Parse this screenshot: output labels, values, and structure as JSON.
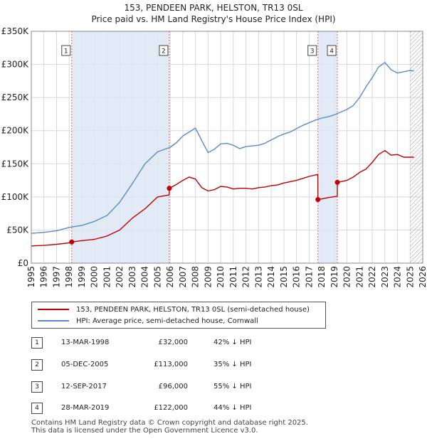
{
  "title": "153, PENDEEN PARK, HELSTON, TR13 0SL",
  "subtitle": "Price paid vs. HM Land Registry's House Price Index (HPI)",
  "colors": {
    "price_line": "#c00000",
    "hpi_line": "#5a8acb",
    "shade": "#dde6f5",
    "grid": "#d8d8d8",
    "marker_line": "#e06a6a"
  },
  "legend": {
    "price_label": "153, PENDEEN PARK, HELSTON, TR13 0SL (semi-detached house)",
    "hpi_label": "HPI: Average price, semi-detached house, Cornwall"
  },
  "transactions": [
    {
      "num": "1",
      "date": "13-MAR-1998",
      "price": "£32,000",
      "hpi": "42% ↓ HPI"
    },
    {
      "num": "2",
      "date": "05-DEC-2005",
      "price": "£113,000",
      "hpi": "35% ↓ HPI"
    },
    {
      "num": "3",
      "date": "12-SEP-2017",
      "price": "£96,000",
      "hpi": "55% ↓ HPI"
    },
    {
      "num": "4",
      "date": "28-MAR-2019",
      "price": "£122,000",
      "hpi": "44% ↓ HPI"
    }
  ],
  "footer": {
    "line1": "Contains HM Land Registry data © Crown copyright and database right 2025.",
    "line2": "This data is licensed under the Open Government Licence v3.0."
  },
  "chart_data": {
    "type": "line",
    "xlim": [
      1995,
      2026
    ],
    "ylim": [
      0,
      350000
    ],
    "ytick_values": [
      0,
      50000,
      100000,
      150000,
      200000,
      250000,
      300000,
      350000
    ],
    "ytick_labels": [
      "£0",
      "£50K",
      "£100K",
      "£150K",
      "£200K",
      "£250K",
      "£300K",
      "£350K"
    ],
    "xtick_values": [
      1995,
      1996,
      1997,
      1998,
      1999,
      2000,
      2001,
      2002,
      2003,
      2004,
      2005,
      2006,
      2007,
      2008,
      2009,
      2010,
      2011,
      2012,
      2013,
      2014,
      2015,
      2016,
      2017,
      2018,
      2019,
      2020,
      2021,
      2022,
      2023,
      2024,
      2025,
      2026
    ],
    "xtick_labels": [
      "1995",
      "1996",
      "1997",
      "1998",
      "1999",
      "2000",
      "2001",
      "2002",
      "2003",
      "2004",
      "2005",
      "2006",
      "2007",
      "2008",
      "2009",
      "2010",
      "2011",
      "2012",
      "2013",
      "2014",
      "2015",
      "2016",
      "2017",
      "2018",
      "2019",
      "2020",
      "2021",
      "2022",
      "2023",
      "2024",
      "2025",
      "2026"
    ],
    "shaded_ranges": [
      [
        1998.2,
        2005.93
      ],
      [
        2017.7,
        2019.24
      ]
    ],
    "hatch_from": 2025.0,
    "sales": [
      {
        "label": "1",
        "x": 1998.2,
        "y": 32000
      },
      {
        "label": "2",
        "x": 2005.93,
        "y": 113000
      },
      {
        "label": "3",
        "x": 2017.7,
        "y": 96000
      },
      {
        "label": "4",
        "x": 2019.24,
        "y": 122000
      }
    ],
    "series": [
      {
        "name": "153, PENDEEN PARK, HELSTON, TR13 0SL (semi-detached house)",
        "x": [
          1995.0,
          1996.0,
          1997.0,
          1998.19,
          1998.2,
          1999.0,
          2000.0,
          2001.0,
          2002.0,
          2003.0,
          2004.0,
          2005.0,
          2005.92,
          2005.93,
          2006.5,
          2007.0,
          2007.5,
          2008.0,
          2008.5,
          2009.0,
          2009.5,
          2010.0,
          2010.5,
          2011.0,
          2011.5,
          2012.0,
          2012.5,
          2013.0,
          2013.5,
          2014.0,
          2014.5,
          2015.0,
          2015.5,
          2016.0,
          2016.5,
          2017.0,
          2017.69,
          2017.7,
          2018.0,
          2018.5,
          2019.23,
          2019.24,
          2020.0,
          2020.5,
          2021.0,
          2021.5,
          2022.0,
          2022.5,
          2023.0,
          2023.5,
          2024.0,
          2024.5,
          2025.0,
          2025.3
        ],
        "y": [
          26000,
          27000,
          28500,
          31000,
          32000,
          34000,
          36000,
          41000,
          50000,
          68000,
          82000,
          100000,
          103000,
          113000,
          119000,
          125000,
          130000,
          127000,
          114000,
          109000,
          111000,
          116000,
          115000,
          112000,
          113000,
          113000,
          112000,
          114000,
          115000,
          117000,
          118000,
          121000,
          123000,
          125000,
          128000,
          131000,
          134000,
          96000,
          97000,
          99000,
          101000,
          122000,
          125000,
          130000,
          137000,
          142000,
          152000,
          164000,
          170000,
          163000,
          164000,
          160000,
          160000,
          160000
        ]
      },
      {
        "name": "HPI: Average price, semi-detached house, Cornwall",
        "x": [
          1995.0,
          1996.0,
          1997.0,
          1998.0,
          1999.0,
          2000.0,
          2001.0,
          2002.0,
          2003.0,
          2004.0,
          2005.0,
          2006.0,
          2006.5,
          2007.0,
          2007.5,
          2008.0,
          2008.5,
          2009.0,
          2009.5,
          2010.0,
          2010.5,
          2011.0,
          2011.5,
          2012.0,
          2012.5,
          2013.0,
          2013.5,
          2014.0,
          2014.5,
          2015.0,
          2015.5,
          2016.0,
          2016.5,
          2017.0,
          2017.5,
          2018.0,
          2018.5,
          2019.0,
          2019.5,
          2020.0,
          2020.5,
          2021.0,
          2021.5,
          2022.0,
          2022.5,
          2023.0,
          2023.5,
          2024.0,
          2024.5,
          2025.0,
          2025.3
        ],
        "y": [
          45000,
          46500,
          49000,
          54000,
          57000,
          63000,
          72000,
          92000,
          120000,
          150000,
          168000,
          175000,
          182000,
          192000,
          198000,
          204000,
          185000,
          167000,
          172000,
          180000,
          181000,
          178000,
          173000,
          176000,
          177000,
          178000,
          181000,
          186000,
          191000,
          195000,
          198000,
          203000,
          208000,
          212000,
          216000,
          219000,
          221000,
          224000,
          228000,
          232000,
          238000,
          250000,
          266000,
          280000,
          296000,
          303000,
          292000,
          287000,
          289000,
          291000,
          290000
        ]
      }
    ]
  }
}
